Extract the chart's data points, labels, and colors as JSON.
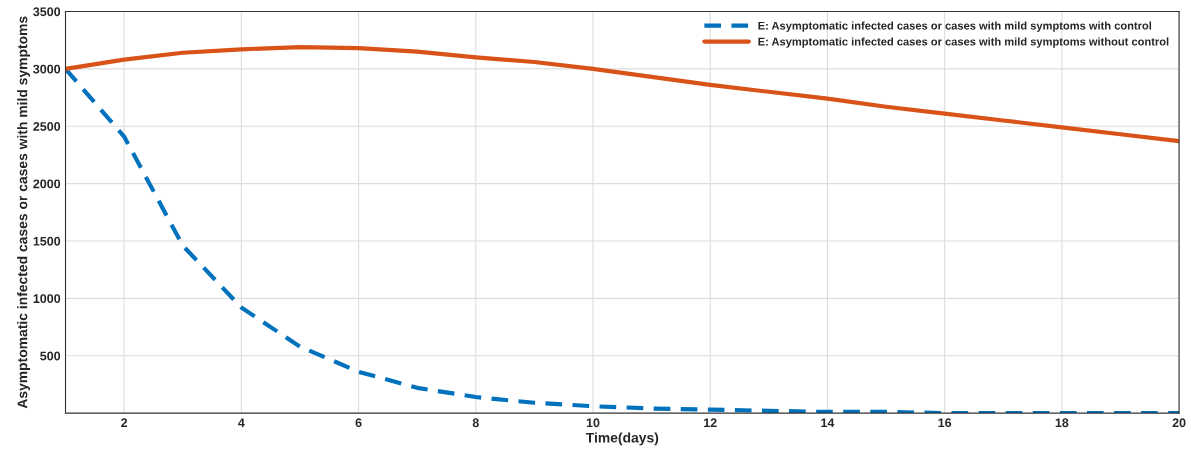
{
  "chart_data": {
    "type": "line",
    "xlabel": "Time(days)",
    "ylabel": "Asymptomatic infected cases or cases with mild symptoms",
    "x": [
      1,
      2,
      3,
      4,
      5,
      6,
      7,
      8,
      9,
      10,
      11,
      12,
      13,
      14,
      15,
      16,
      17,
      18,
      19,
      20
    ],
    "xlim": [
      1,
      20
    ],
    "xticks": [
      2,
      4,
      6,
      8,
      10,
      12,
      14,
      16,
      18,
      20
    ],
    "ylim": [
      0,
      3500
    ],
    "yticks": [
      500,
      1000,
      1500,
      2000,
      2500,
      3000,
      3500
    ],
    "grid": true,
    "legend": "top right",
    "series": [
      {
        "name": "E: Asymptomatic infected cases or cases with mild symptoms with control",
        "color": "#0072bd",
        "line_style": "dashed",
        "values": [
          3000,
          2410,
          1460,
          920,
          580,
          360,
          220,
          140,
          90,
          60,
          40,
          30,
          20,
          10,
          10,
          0,
          0,
          0,
          0,
          0
        ]
      },
      {
        "name": "E: Asymptomatic infected cases or cases with mild symptoms without control",
        "color": "#d95319",
        "line_style": "solid",
        "values": [
          3000,
          3080,
          3140,
          3170,
          3190,
          3180,
          3150,
          3100,
          3060,
          3000,
          2930,
          2860,
          2800,
          2740,
          2670,
          2610,
          2550,
          2490,
          2430,
          2370
        ]
      }
    ]
  }
}
